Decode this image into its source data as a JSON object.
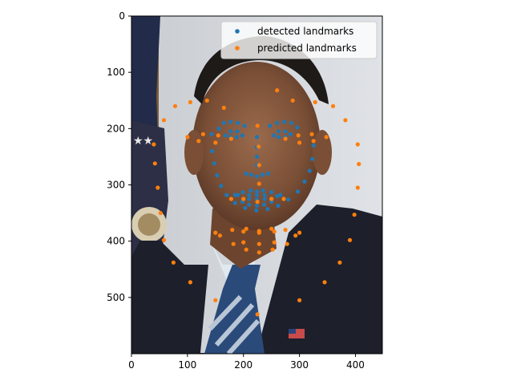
{
  "chart_data": {
    "type": "scatter",
    "title": "",
    "xlabel": "",
    "ylabel": "",
    "xlim": [
      0,
      448
    ],
    "ylim": [
      600,
      0
    ],
    "background": "portrait photograph",
    "x_ticks": [
      "0",
      "100",
      "200",
      "300",
      "400"
    ],
    "y_ticks": [
      "0",
      "100",
      "200",
      "300",
      "400",
      "500"
    ],
    "x_tick_values": [
      0,
      100,
      200,
      300,
      400
    ],
    "y_tick_values": [
      0,
      100,
      200,
      300,
      400,
      500
    ],
    "legend_position": "upper right",
    "series": [
      {
        "name": "detected landmarks",
        "color": "#1f77b4",
        "points": [
          [
            143,
            210
          ],
          [
            144,
            240
          ],
          [
            148,
            262
          ],
          [
            153,
            283
          ],
          [
            160,
            302
          ],
          [
            170,
            318
          ],
          [
            185,
            332
          ],
          [
            203,
            341
          ],
          [
            223,
            345
          ],
          [
            243,
            343
          ],
          [
            262,
            337
          ],
          [
            280,
            326
          ],
          [
            297,
            312
          ],
          [
            309,
            294
          ],
          [
            318,
            275
          ],
          [
            323,
            254
          ],
          [
            325,
            230
          ],
          [
            156,
            200
          ],
          [
            165,
            190
          ],
          [
            177,
            188
          ],
          [
            190,
            190
          ],
          [
            202,
            195
          ],
          [
            247,
            195
          ],
          [
            260,
            190
          ],
          [
            273,
            188
          ],
          [
            286,
            190
          ],
          [
            296,
            198
          ],
          [
            224,
            215
          ],
          [
            224,
            233
          ],
          [
            224,
            250
          ],
          [
            224,
            265
          ],
          [
            205,
            280
          ],
          [
            214,
            282
          ],
          [
            224,
            285
          ],
          [
            234,
            282
          ],
          [
            244,
            280
          ],
          [
            168,
            212
          ],
          [
            177,
            205
          ],
          [
            189,
            205
          ],
          [
            198,
            212
          ],
          [
            188,
            215
          ],
          [
            177,
            215
          ],
          [
            254,
            212
          ],
          [
            263,
            205
          ],
          [
            275,
            205
          ],
          [
            284,
            210
          ],
          [
            275,
            215
          ],
          [
            263,
            215
          ],
          [
            185,
            318
          ],
          [
            199,
            313
          ],
          [
            213,
            310
          ],
          [
            224,
            312
          ],
          [
            235,
            310
          ],
          [
            250,
            313
          ],
          [
            266,
            318
          ],
          [
            250,
            330
          ],
          [
            237,
            335
          ],
          [
            224,
            337
          ],
          [
            210,
            335
          ],
          [
            198,
            330
          ],
          [
            190,
            318
          ],
          [
            210,
            318
          ],
          [
            224,
            318
          ],
          [
            238,
            318
          ],
          [
            260,
            320
          ],
          [
            238,
            325
          ],
          [
            224,
            326
          ],
          [
            210,
            325
          ]
        ]
      },
      {
        "name": "predicted landmarks",
        "color": "#ff7f0e",
        "points": [
          [
            40,
            228
          ],
          [
            42,
            262
          ],
          [
            47,
            305
          ],
          [
            52,
            350
          ],
          [
            58,
            398
          ],
          [
            75,
            438
          ],
          [
            105,
            473
          ],
          [
            150,
            505
          ],
          [
            225,
            530
          ],
          [
            300,
            505
          ],
          [
            345,
            473
          ],
          [
            372,
            438
          ],
          [
            390,
            398
          ],
          [
            398,
            353
          ],
          [
            404,
            305
          ],
          [
            406,
            263
          ],
          [
            404,
            228
          ],
          [
            58,
            185
          ],
          [
            78,
            160
          ],
          [
            105,
            153
          ],
          [
            135,
            150
          ],
          [
            165,
            163
          ],
          [
            260,
            132
          ],
          [
            288,
            150
          ],
          [
            328,
            153
          ],
          [
            360,
            160
          ],
          [
            382,
            185
          ],
          [
            225,
            195
          ],
          [
            227,
            232
          ],
          [
            228,
            265
          ],
          [
            228,
            298
          ],
          [
            178,
            325
          ],
          [
            200,
            325
          ],
          [
            225,
            330
          ],
          [
            250,
            325
          ],
          [
            272,
            325
          ],
          [
            100,
            215
          ],
          [
            128,
            210
          ],
          [
            155,
            212
          ],
          [
            178,
            218
          ],
          [
            150,
            225
          ],
          [
            120,
            222
          ],
          [
            275,
            218
          ],
          [
            298,
            212
          ],
          [
            322,
            210
          ],
          [
            348,
            215
          ],
          [
            325,
            222
          ],
          [
            300,
            225
          ],
          [
            150,
            385
          ],
          [
            180,
            380
          ],
          [
            205,
            378
          ],
          [
            228,
            382
          ],
          [
            250,
            378
          ],
          [
            275,
            380
          ],
          [
            300,
            385
          ],
          [
            278,
            405
          ],
          [
            252,
            415
          ],
          [
            228,
            420
          ],
          [
            205,
            415
          ],
          [
            182,
            405
          ],
          [
            158,
            390
          ],
          [
            200,
            383
          ],
          [
            228,
            385
          ],
          [
            255,
            383
          ],
          [
            293,
            390
          ],
          [
            255,
            402
          ],
          [
            228,
            405
          ],
          [
            200,
            402
          ]
        ]
      }
    ]
  }
}
